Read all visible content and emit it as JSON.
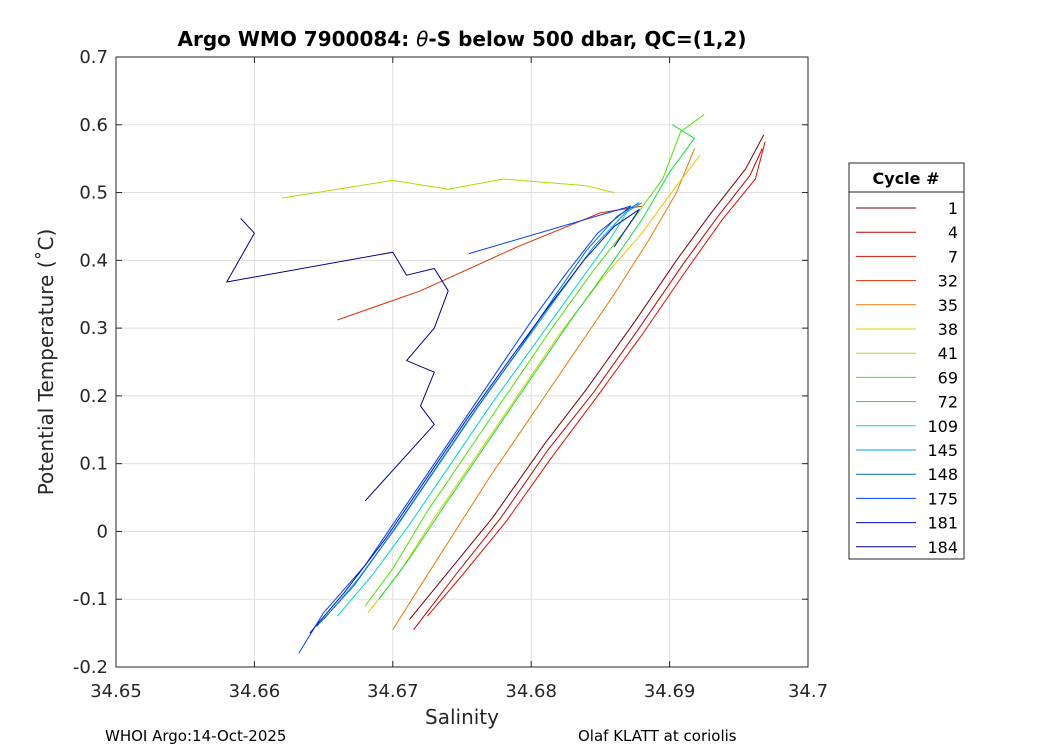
{
  "chart_data": {
    "type": "line",
    "title_prefix": "Argo WMO 7900084: ",
    "title_theta": "θ",
    "title_suffix": "-S below 500 dbar,  QC=(1,2)",
    "xlabel": "Salinity",
    "ylabel": "Potential Temperature (˚C)",
    "xlim": [
      34.65,
      34.7
    ],
    "ylim": [
      -0.2,
      0.7
    ],
    "xticks": [
      "34.65",
      "34.66",
      "34.67",
      "34.68",
      "34.69",
      "34.7"
    ],
    "yticks": [
      "-0.2",
      "-0.1",
      "0",
      "0.1",
      "0.2",
      "0.3",
      "0.4",
      "0.5",
      "0.6",
      "0.7"
    ],
    "grid": true,
    "legend_title": "Cycle #",
    "legend_position": "right-outside",
    "series": [
      {
        "name": "1",
        "color": "#7a0000",
        "points": [
          [
            34.6712,
            -0.13
          ],
          [
            34.674,
            -0.06
          ],
          [
            34.6772,
            0.02
          ],
          [
            34.681,
            0.13
          ],
          [
            34.684,
            0.21
          ],
          [
            34.6875,
            0.31
          ],
          [
            34.6905,
            0.4
          ],
          [
            34.693,
            0.47
          ],
          [
            34.6955,
            0.535
          ],
          [
            34.6968,
            0.585
          ]
        ]
      },
      {
        "name": "4",
        "color": "#c00000",
        "points": [
          [
            34.6715,
            -0.145
          ],
          [
            34.6745,
            -0.065
          ],
          [
            34.6778,
            0.02
          ],
          [
            34.6812,
            0.12
          ],
          [
            34.6845,
            0.205
          ],
          [
            34.6878,
            0.3
          ],
          [
            34.691,
            0.395
          ],
          [
            34.6935,
            0.465
          ],
          [
            34.6958,
            0.525
          ],
          [
            34.6967,
            0.565
          ]
        ]
      },
      {
        "name": "7",
        "color": "#dd1100",
        "points": [
          [
            34.6725,
            -0.125
          ],
          [
            34.675,
            -0.065
          ],
          [
            34.6782,
            0.015
          ],
          [
            34.6815,
            0.11
          ],
          [
            34.6848,
            0.2
          ],
          [
            34.688,
            0.29
          ],
          [
            34.6912,
            0.385
          ],
          [
            34.6938,
            0.46
          ],
          [
            34.6962,
            0.52
          ],
          [
            34.6969,
            0.575
          ]
        ]
      },
      {
        "name": "32",
        "color": "#e03000",
        "points": [
          [
            34.666,
            0.312
          ],
          [
            34.672,
            0.355
          ],
          [
            34.679,
            0.42
          ],
          [
            34.685,
            0.47
          ],
          [
            34.688,
            0.48
          ]
        ]
      },
      {
        "name": "35",
        "color": "#ec7a10",
        "points": [
          [
            34.67,
            -0.145
          ],
          [
            34.672,
            -0.08
          ],
          [
            34.6745,
            0.0
          ],
          [
            34.677,
            0.08
          ],
          [
            34.68,
            0.17
          ],
          [
            34.683,
            0.26
          ],
          [
            34.686,
            0.35
          ],
          [
            34.6885,
            0.43
          ],
          [
            34.6905,
            0.5
          ],
          [
            34.6918,
            0.565
          ]
        ]
      },
      {
        "name": "38",
        "color": "#e8c800",
        "points": [
          [
            34.6682,
            -0.12
          ],
          [
            34.6705,
            -0.06
          ],
          [
            34.673,
            0.02
          ],
          [
            34.676,
            0.11
          ],
          [
            34.679,
            0.2
          ],
          [
            34.682,
            0.29
          ],
          [
            34.685,
            0.37
          ],
          [
            34.688,
            0.44
          ],
          [
            34.6905,
            0.51
          ],
          [
            34.6922,
            0.555
          ]
        ]
      },
      {
        "name": "41",
        "color": "#a8e000",
        "points": [
          [
            34.662,
            0.492
          ],
          [
            34.666,
            0.505
          ],
          [
            34.67,
            0.518
          ],
          [
            34.674,
            0.505
          ],
          [
            34.678,
            0.52
          ],
          [
            34.684,
            0.51
          ],
          [
            34.686,
            0.5
          ]
        ]
      },
      {
        "name": "69",
        "color": "#50e000",
        "points": [
          [
            34.668,
            -0.11
          ],
          [
            34.67,
            -0.055
          ],
          [
            34.6725,
            0.03
          ],
          [
            34.6755,
            0.12
          ],
          [
            34.6785,
            0.21
          ],
          [
            34.6815,
            0.3
          ],
          [
            34.6845,
            0.385
          ],
          [
            34.687,
            0.45
          ],
          [
            34.6895,
            0.52
          ],
          [
            34.6908,
            0.59
          ],
          [
            34.6925,
            0.615
          ]
        ]
      },
      {
        "name": "72",
        "color": "#10e040",
        "points": [
          [
            34.669,
            -0.1
          ],
          [
            34.6712,
            -0.04
          ],
          [
            34.6738,
            0.04
          ],
          [
            34.6768,
            0.13
          ],
          [
            34.6798,
            0.22
          ],
          [
            34.6828,
            0.31
          ],
          [
            34.6858,
            0.395
          ],
          [
            34.688,
            0.46
          ],
          [
            34.69,
            0.53
          ],
          [
            34.6918,
            0.58
          ],
          [
            34.6902,
            0.6
          ]
        ]
      },
      {
        "name": "109",
        "color": "#00d8c8",
        "points": [
          [
            34.666,
            -0.125
          ],
          [
            34.6685,
            -0.065
          ],
          [
            34.6712,
            0.01
          ],
          [
            34.6742,
            0.1
          ],
          [
            34.6772,
            0.19
          ],
          [
            34.6802,
            0.275
          ],
          [
            34.6832,
            0.36
          ],
          [
            34.6855,
            0.425
          ],
          [
            34.6872,
            0.48
          ]
        ]
      },
      {
        "name": "145",
        "color": "#00a0e0",
        "points": [
          [
            34.665,
            -0.13
          ],
          [
            34.6675,
            -0.07
          ],
          [
            34.6702,
            0.005
          ],
          [
            34.6732,
            0.095
          ],
          [
            34.6762,
            0.185
          ],
          [
            34.6792,
            0.27
          ],
          [
            34.6822,
            0.355
          ],
          [
            34.6845,
            0.42
          ],
          [
            34.6868,
            0.47
          ],
          [
            34.688,
            0.485
          ]
        ]
      },
      {
        "name": "148",
        "color": "#0070c8",
        "points": [
          [
            34.6645,
            -0.14
          ],
          [
            34.6672,
            -0.08
          ],
          [
            34.67,
            0.0
          ],
          [
            34.673,
            0.09
          ],
          [
            34.676,
            0.18
          ],
          [
            34.679,
            0.265
          ],
          [
            34.6818,
            0.35
          ],
          [
            34.684,
            0.415
          ],
          [
            34.6862,
            0.465
          ],
          [
            34.6878,
            0.485
          ]
        ]
      },
      {
        "name": "175",
        "color": "#0040ff",
        "points": [
          [
            34.6632,
            -0.18
          ],
          [
            34.665,
            -0.12
          ],
          [
            34.668,
            -0.05
          ],
          [
            34.671,
            0.04
          ],
          [
            34.674,
            0.13
          ],
          [
            34.677,
            0.22
          ],
          [
            34.68,
            0.31
          ],
          [
            34.6825,
            0.38
          ],
          [
            34.6848,
            0.44
          ],
          [
            34.6872,
            0.48
          ],
          [
            34.6755,
            0.41
          ]
        ]
      },
      {
        "name": "181",
        "color": "#0010c0",
        "points": [
          [
            34.664,
            -0.15
          ],
          [
            34.6665,
            -0.09
          ],
          [
            34.6695,
            -0.01
          ],
          [
            34.6725,
            0.08
          ],
          [
            34.6755,
            0.17
          ],
          [
            34.6785,
            0.255
          ],
          [
            34.6812,
            0.33
          ],
          [
            34.6838,
            0.4
          ],
          [
            34.686,
            0.45
          ],
          [
            34.6878,
            0.475
          ],
          [
            34.686,
            0.42
          ]
        ]
      },
      {
        "name": "184",
        "color": "#000090",
        "points": [
          [
            34.668,
            0.045
          ],
          [
            34.673,
            0.158
          ],
          [
            34.672,
            0.185
          ],
          [
            34.673,
            0.235
          ],
          [
            34.671,
            0.252
          ],
          [
            34.673,
            0.3
          ],
          [
            34.674,
            0.355
          ],
          [
            34.673,
            0.388
          ],
          [
            34.671,
            0.378
          ],
          [
            34.67,
            0.412
          ],
          [
            34.658,
            0.368
          ],
          [
            34.66,
            0.44
          ],
          [
            34.659,
            0.462
          ]
        ]
      }
    ]
  },
  "footer": {
    "left": "WHOI Argo:14-Oct-2025",
    "right": "Olaf KLATT at coriolis"
  }
}
